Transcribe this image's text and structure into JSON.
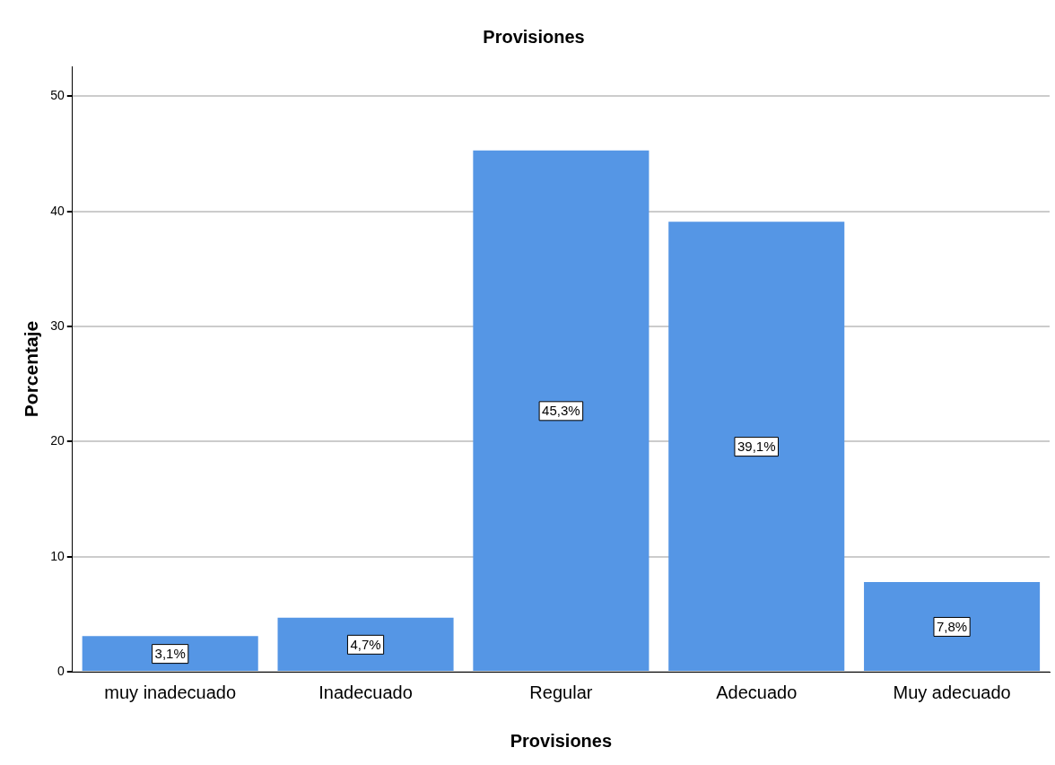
{
  "chart_data": {
    "type": "bar",
    "title": "Provisiones",
    "xlabel": "Provisiones",
    "ylabel": "Porcentaje",
    "categories": [
      "muy inadecuado",
      "Inadecuado",
      "Regular",
      "Adecuado",
      "Muy adecuado"
    ],
    "values": [
      3.1,
      4.7,
      45.3,
      39.1,
      7.8
    ],
    "value_labels": [
      "3,1%",
      "4,7%",
      "45,3%",
      "39,1%",
      "7,8%"
    ],
    "color": "#5596e5",
    "ylim": [
      0,
      52.6
    ],
    "yticks": [
      0,
      10,
      20,
      30,
      40,
      50
    ],
    "grid": "y",
    "legend": false
  }
}
